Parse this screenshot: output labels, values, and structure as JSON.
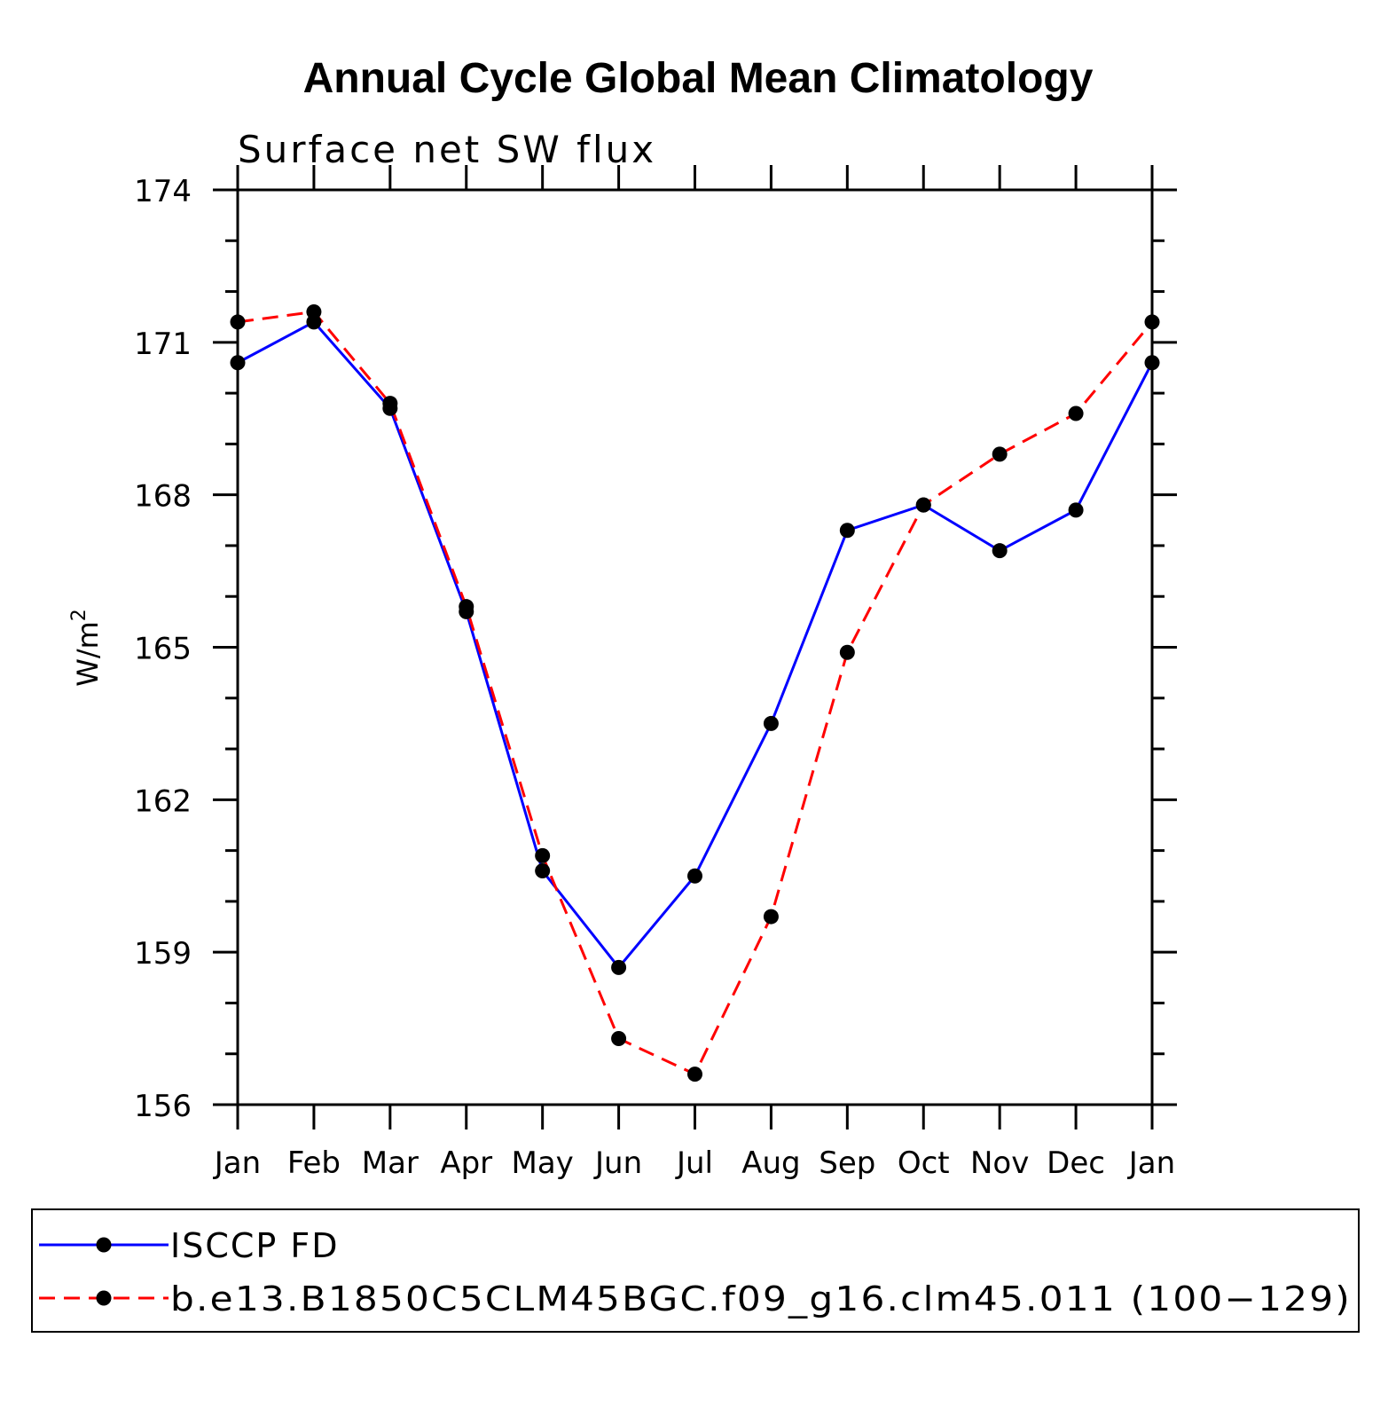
{
  "chart_data": {
    "type": "line",
    "title": "Annual Cycle Global Mean Climatology",
    "subtitle": "Surface net SW flux",
    "ylabel": "W/m",
    "ylabel_superscript": "2",
    "xlabel": "",
    "categories": [
      "Jan",
      "Feb",
      "Mar",
      "Apr",
      "May",
      "Jun",
      "Jul",
      "Aug",
      "Sep",
      "Oct",
      "Nov",
      "Dec",
      "Jan"
    ],
    "ylim": [
      156,
      174
    ],
    "yticks": [
      "174",
      "171",
      "168",
      "165",
      "162",
      "159",
      "156"
    ],
    "grid": false,
    "legend_position": "bottom",
    "series": [
      {
        "name": "ISCCP FD",
        "color": "#0000ff",
        "line_style": "solid",
        "marker": "filled-circle",
        "values": [
          170.6,
          171.4,
          169.7,
          165.7,
          160.6,
          158.7,
          160.5,
          163.5,
          167.3,
          167.8,
          166.9,
          167.7,
          170.6
        ]
      },
      {
        "name": "b.e13.B1850C5CLM45BGC.f09_g16.clm45.011 (100−129)",
        "color": "#ff0000",
        "line_style": "dashed",
        "marker": "filled-circle",
        "values": [
          171.4,
          171.6,
          169.8,
          165.8,
          160.9,
          157.3,
          156.6,
          159.7,
          164.9,
          167.8,
          168.8,
          169.6,
          171.4
        ]
      }
    ]
  }
}
